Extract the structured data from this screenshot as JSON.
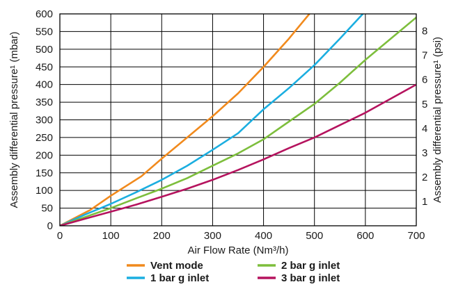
{
  "chart_data": {
    "type": "line",
    "xlabel": "Air Flow Rate (Nm³/h)",
    "ylabel": "Assembly differential pressure¹ (mbar)",
    "y2label": "Assembly differential pressure¹ (psi)",
    "xlim": [
      0,
      700
    ],
    "ylim": [
      0,
      600
    ],
    "y2lim": [
      0,
      8.702
    ],
    "xticks": [
      0,
      100,
      200,
      300,
      400,
      500,
      600,
      700
    ],
    "yticks": [
      0,
      50,
      100,
      150,
      200,
      250,
      300,
      350,
      400,
      450,
      500,
      550,
      600
    ],
    "y2ticks": [
      1,
      2,
      3,
      4,
      5,
      6,
      7,
      8
    ],
    "grid": true,
    "legend_position": "bottom",
    "series": [
      {
        "name": "Vent mode",
        "color": "#F18A1D",
        "x": [
          0,
          60,
          100,
          160,
          200,
          250,
          300,
          350,
          400,
          450,
          490
        ],
        "y": [
          0,
          45,
          85,
          140,
          190,
          250,
          310,
          375,
          450,
          530,
          600
        ]
      },
      {
        "name": "1 bar g inlet",
        "color": "#1BAEE0",
        "x": [
          0,
          50,
          100,
          150,
          200,
          250,
          300,
          350,
          400,
          450,
          500,
          550,
          595
        ],
        "y": [
          0,
          32,
          62,
          95,
          130,
          170,
          215,
          262,
          330,
          390,
          455,
          530,
          600
        ]
      },
      {
        "name": "2 bar g inlet",
        "color": "#7DBE3C",
        "x": [
          0,
          50,
          100,
          150,
          200,
          250,
          300,
          350,
          400,
          450,
          500,
          550,
          600,
          650,
          700
        ],
        "y": [
          0,
          25,
          50,
          78,
          105,
          135,
          170,
          205,
          245,
          295,
          345,
          405,
          470,
          530,
          590
        ]
      },
      {
        "name": "3 bar g inlet",
        "color": "#B5135E",
        "x": [
          0,
          50,
          100,
          150,
          200,
          250,
          300,
          350,
          400,
          450,
          500,
          550,
          600,
          650,
          700
        ],
        "y": [
          0,
          20,
          40,
          60,
          82,
          105,
          130,
          158,
          188,
          220,
          250,
          285,
          320,
          360,
          400
        ]
      }
    ]
  }
}
